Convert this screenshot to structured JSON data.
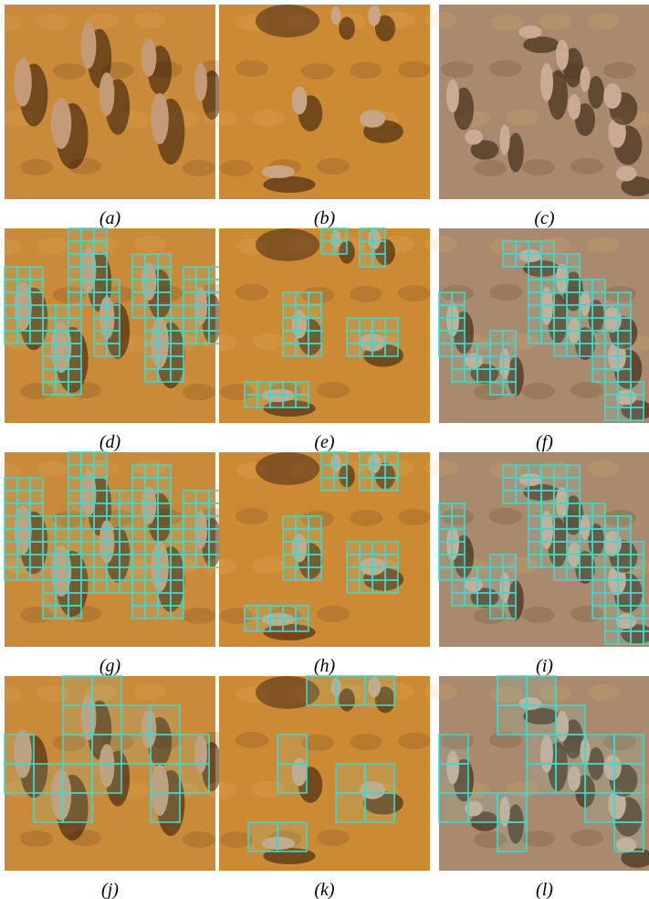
{
  "figure": {
    "captions": [
      "(a)",
      "(b)",
      "(c)",
      "(d)",
      "(e)",
      "(f)",
      "(g)",
      "(h)",
      "(i)",
      "(j)",
      "(k)",
      "(l)"
    ]
  }
}
